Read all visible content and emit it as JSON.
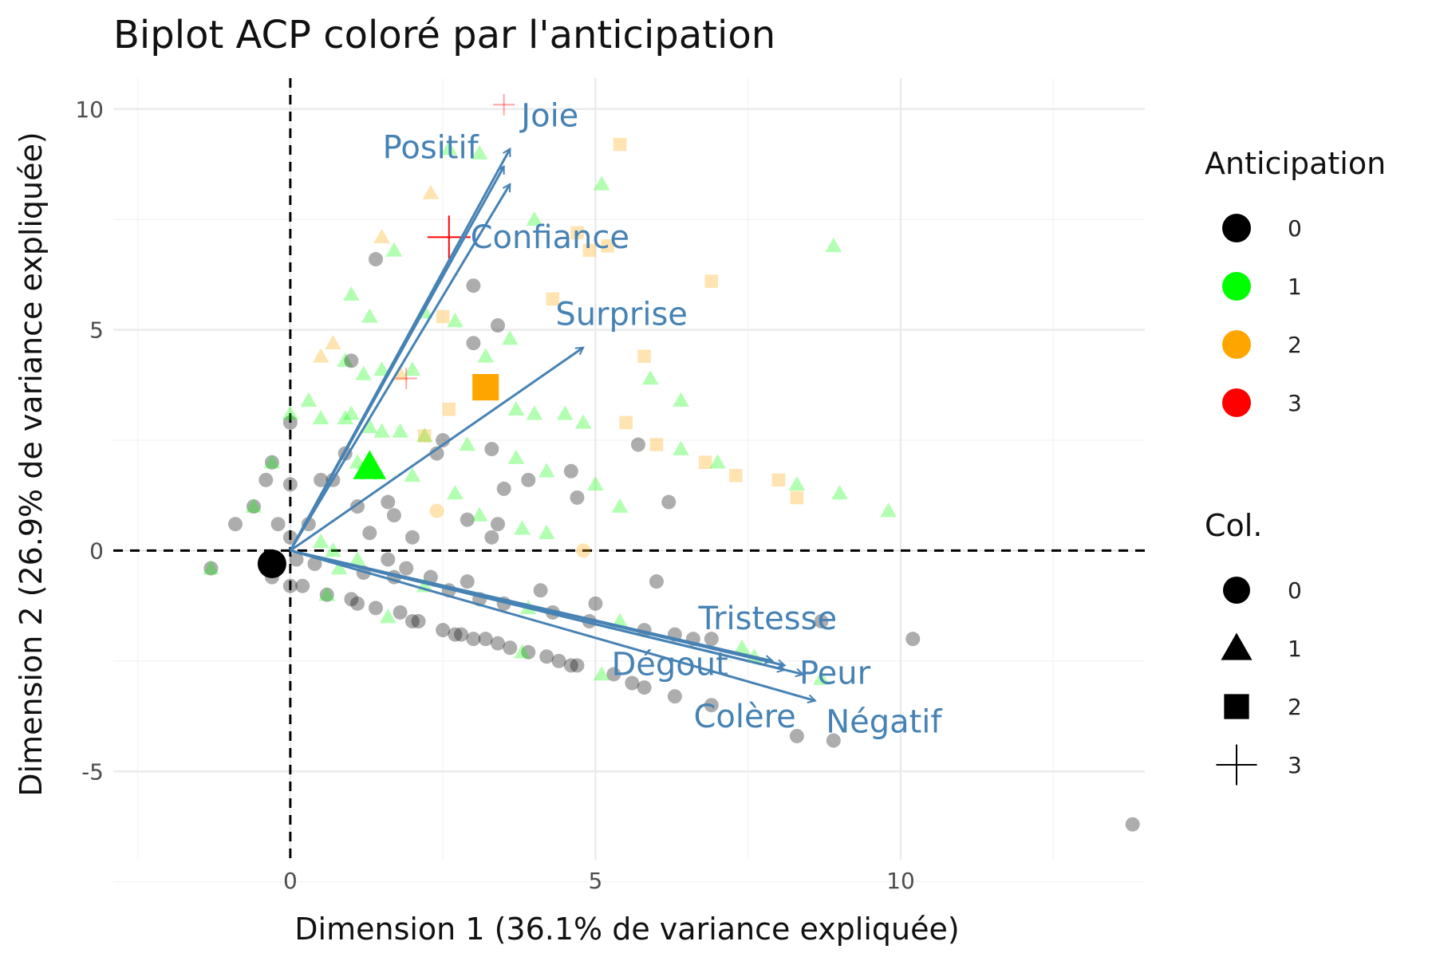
{
  "chart_data": {
    "type": "scatter",
    "title": "Biplot ACP coloré par l'anticipation",
    "xlabel": "Dimension 1 (36.1% de variance expliquée)",
    "ylabel": "Dimension 2 (26.9% de variance expliquée)",
    "xlim": [
      -2.9,
      14.0
    ],
    "ylim": [
      -7.0,
      10.7
    ],
    "x_ticks": [
      0,
      5,
      10
    ],
    "y_ticks": [
      -5,
      0,
      5,
      10
    ],
    "grid": true,
    "reference_lines": {
      "x": 0,
      "y": 0,
      "style": "dashed"
    },
    "legend_position": "right",
    "legends": [
      {
        "title": "Anticipation",
        "kind": "color",
        "items": [
          {
            "label": "0",
            "color": "#000000"
          },
          {
            "label": "1",
            "color": "#00FF00"
          },
          {
            "label": "2",
            "color": "#FFA500"
          },
          {
            "label": "3",
            "color": "#FF0000"
          }
        ]
      },
      {
        "title": "Col.",
        "kind": "shape",
        "items": [
          {
            "label": "0",
            "shape": "circle"
          },
          {
            "label": "1",
            "shape": "triangle"
          },
          {
            "label": "2",
            "shape": "square"
          },
          {
            "label": "3",
            "shape": "plus"
          }
        ]
      }
    ],
    "centroids": [
      {
        "anticipation": "0",
        "x": -0.3,
        "y": -0.3
      },
      {
        "anticipation": "1",
        "x": 1.3,
        "y": 1.9
      },
      {
        "anticipation": "2",
        "x": 3.2,
        "y": 3.7
      },
      {
        "anticipation": "3",
        "x": 2.6,
        "y": 7.1
      }
    ],
    "loadings": [
      {
        "name": "Joie",
        "x": 3.6,
        "y": 9.1
      },
      {
        "name": "Positif",
        "x": 3.5,
        "y": 8.7
      },
      {
        "name": "Confiance",
        "x": 3.6,
        "y": 8.3
      },
      {
        "name": "Surprise",
        "x": 4.8,
        "y": 4.6
      },
      {
        "name": "Tristesse",
        "x": 7.9,
        "y": -2.5
      },
      {
        "name": "Dégout",
        "x": 8.1,
        "y": -2.6
      },
      {
        "name": "Peur",
        "x": 8.4,
        "y": -2.8
      },
      {
        "name": "Colère",
        "x": 8.1,
        "y": -2.7
      },
      {
        "name": "Négatif",
        "x": 8.6,
        "y": -3.4
      }
    ],
    "points": [
      {
        "x": -1.3,
        "y": -0.4,
        "a": 0,
        "s": 0
      },
      {
        "x": -1.3,
        "y": -0.4,
        "a": 1,
        "s": 1
      },
      {
        "x": -0.9,
        "y": 0.6,
        "a": 0,
        "s": 0
      },
      {
        "x": -0.6,
        "y": 1.0,
        "a": 0,
        "s": 0
      },
      {
        "x": -0.6,
        "y": 1.0,
        "a": 1,
        "s": 1
      },
      {
        "x": -0.4,
        "y": 1.6,
        "a": 0,
        "s": 0
      },
      {
        "x": -0.3,
        "y": 2.0,
        "a": 0,
        "s": 0
      },
      {
        "x": -0.3,
        "y": 2.0,
        "a": 1,
        "s": 1
      },
      {
        "x": -0.3,
        "y": -0.6,
        "a": 0,
        "s": 0
      },
      {
        "x": -0.2,
        "y": 0.6,
        "a": 0,
        "s": 0
      },
      {
        "x": 0.0,
        "y": 1.5,
        "a": 0,
        "s": 0
      },
      {
        "x": 0.0,
        "y": 2.9,
        "a": 0,
        "s": 0
      },
      {
        "x": 0.0,
        "y": 3.1,
        "a": 1,
        "s": 1
      },
      {
        "x": 0.0,
        "y": 0.3,
        "a": 0,
        "s": 0
      },
      {
        "x": 0.0,
        "y": -0.8,
        "a": 0,
        "s": 0
      },
      {
        "x": 0.3,
        "y": 3.4,
        "a": 1,
        "s": 1
      },
      {
        "x": 0.3,
        "y": 0.6,
        "a": 0,
        "s": 0
      },
      {
        "x": 0.5,
        "y": 1.6,
        "a": 0,
        "s": 0
      },
      {
        "x": 0.5,
        "y": 3.0,
        "a": 1,
        "s": 1
      },
      {
        "x": 0.5,
        "y": 4.4,
        "a": 2,
        "s": 1
      },
      {
        "x": 0.5,
        "y": 0.2,
        "a": 1,
        "s": 1
      },
      {
        "x": 0.6,
        "y": -1.0,
        "a": 0,
        "s": 0
      },
      {
        "x": 0.7,
        "y": 4.7,
        "a": 2,
        "s": 1
      },
      {
        "x": 0.7,
        "y": 1.6,
        "a": 0,
        "s": 0
      },
      {
        "x": 0.7,
        "y": 0.0,
        "a": 1,
        "s": 1
      },
      {
        "x": 0.9,
        "y": 2.2,
        "a": 0,
        "s": 0
      },
      {
        "x": 0.9,
        "y": 4.3,
        "a": 1,
        "s": 1
      },
      {
        "x": 1.0,
        "y": -1.1,
        "a": 0,
        "s": 0
      },
      {
        "x": 1.0,
        "y": 4.3,
        "a": 0,
        "s": 0
      },
      {
        "x": 1.0,
        "y": 3.1,
        "a": 1,
        "s": 1
      },
      {
        "x": 1.0,
        "y": 5.8,
        "a": 1,
        "s": 1
      },
      {
        "x": 1.1,
        "y": 1.0,
        "a": 0,
        "s": 0
      },
      {
        "x": 1.1,
        "y": -0.2,
        "a": 1,
        "s": 1
      },
      {
        "x": 1.2,
        "y": 4.0,
        "a": 1,
        "s": 1
      },
      {
        "x": 1.3,
        "y": 2.8,
        "a": 1,
        "s": 1
      },
      {
        "x": 1.3,
        "y": 5.3,
        "a": 1,
        "s": 1
      },
      {
        "x": 1.3,
        "y": 0.4,
        "a": 0,
        "s": 0
      },
      {
        "x": 1.4,
        "y": -1.3,
        "a": 0,
        "s": 0
      },
      {
        "x": 1.4,
        "y": 6.6,
        "a": 0,
        "s": 0
      },
      {
        "x": 1.5,
        "y": 7.1,
        "a": 2,
        "s": 1
      },
      {
        "x": 1.5,
        "y": 4.1,
        "a": 1,
        "s": 1
      },
      {
        "x": 1.5,
        "y": 2.7,
        "a": 1,
        "s": 1
      },
      {
        "x": 1.6,
        "y": 1.1,
        "a": 0,
        "s": 0
      },
      {
        "x": 1.6,
        "y": -0.2,
        "a": 0,
        "s": 0
      },
      {
        "x": 1.7,
        "y": 6.8,
        "a": 1,
        "s": 1
      },
      {
        "x": 1.7,
        "y": 0.8,
        "a": 0,
        "s": 0
      },
      {
        "x": 1.8,
        "y": -1.4,
        "a": 0,
        "s": 0
      },
      {
        "x": 1.8,
        "y": 4.0,
        "a": 2,
        "s": 1
      },
      {
        "x": 1.8,
        "y": 2.7,
        "a": 1,
        "s": 1
      },
      {
        "x": 1.9,
        "y": -0.4,
        "a": 0,
        "s": 0
      },
      {
        "x": 2.0,
        "y": 4.1,
        "a": 1,
        "s": 1
      },
      {
        "x": 2.0,
        "y": 1.7,
        "a": 1,
        "s": 1
      },
      {
        "x": 2.1,
        "y": -1.6,
        "a": 0,
        "s": 0
      },
      {
        "x": 2.2,
        "y": 2.6,
        "a": 1,
        "s": 1
      },
      {
        "x": 2.2,
        "y": 5.4,
        "a": 1,
        "s": 1
      },
      {
        "x": 2.3,
        "y": 8.1,
        "a": 2,
        "s": 1
      },
      {
        "x": 2.3,
        "y": -0.6,
        "a": 0,
        "s": 0
      },
      {
        "x": 2.4,
        "y": 0.9,
        "a": 2,
        "s": 0
      },
      {
        "x": 2.4,
        "y": 2.2,
        "a": 0,
        "s": 0
      },
      {
        "x": 2.5,
        "y": 5.3,
        "a": 2,
        "s": 2
      },
      {
        "x": 2.5,
        "y": -1.8,
        "a": 0,
        "s": 0
      },
      {
        "x": 2.6,
        "y": 3.2,
        "a": 2,
        "s": 2
      },
      {
        "x": 2.6,
        "y": 9.1,
        "a": 1,
        "s": 1
      },
      {
        "x": 2.7,
        "y": 1.3,
        "a": 1,
        "s": 1
      },
      {
        "x": 2.7,
        "y": 5.2,
        "a": 1,
        "s": 1
      },
      {
        "x": 2.8,
        "y": -1.9,
        "a": 0,
        "s": 0
      },
      {
        "x": 2.9,
        "y": 0.7,
        "a": 0,
        "s": 0
      },
      {
        "x": 2.9,
        "y": 2.4,
        "a": 1,
        "s": 1
      },
      {
        "x": 2.9,
        "y": -0.7,
        "a": 0,
        "s": 0
      },
      {
        "x": 3.0,
        "y": 4.7,
        "a": 0,
        "s": 0
      },
      {
        "x": 3.0,
        "y": 6.0,
        "a": 0,
        "s": 0
      },
      {
        "x": 3.1,
        "y": 9.0,
        "a": 1,
        "s": 1
      },
      {
        "x": 3.1,
        "y": 0.8,
        "a": 1,
        "s": 1
      },
      {
        "x": 3.2,
        "y": -2.0,
        "a": 0,
        "s": 0
      },
      {
        "x": 3.2,
        "y": 4.4,
        "a": 1,
        "s": 1
      },
      {
        "x": 3.3,
        "y": 2.3,
        "a": 0,
        "s": 0
      },
      {
        "x": 3.3,
        "y": 0.3,
        "a": 0,
        "s": 0
      },
      {
        "x": 3.4,
        "y": 5.1,
        "a": 0,
        "s": 0
      },
      {
        "x": 3.5,
        "y": 10.1,
        "a": 3,
        "s": 3
      },
      {
        "x": 3.5,
        "y": 1.4,
        "a": 0,
        "s": 0
      },
      {
        "x": 3.6,
        "y": -2.2,
        "a": 0,
        "s": 0
      },
      {
        "x": 3.6,
        "y": 4.8,
        "a": 1,
        "s": 1
      },
      {
        "x": 3.7,
        "y": 3.2,
        "a": 1,
        "s": 1
      },
      {
        "x": 3.7,
        "y": 2.1,
        "a": 1,
        "s": 1
      },
      {
        "x": 3.8,
        "y": 0.5,
        "a": 1,
        "s": 1
      },
      {
        "x": 3.9,
        "y": -2.3,
        "a": 0,
        "s": 0
      },
      {
        "x": 4.0,
        "y": 7.5,
        "a": 1,
        "s": 1
      },
      {
        "x": 4.0,
        "y": 3.1,
        "a": 1,
        "s": 1
      },
      {
        "x": 4.1,
        "y": -0.9,
        "a": 0,
        "s": 0
      },
      {
        "x": 4.2,
        "y": 1.8,
        "a": 1,
        "s": 1
      },
      {
        "x": 4.2,
        "y": 0.4,
        "a": 1,
        "s": 1
      },
      {
        "x": 4.3,
        "y": 5.7,
        "a": 2,
        "s": 2
      },
      {
        "x": 4.4,
        "y": -2.5,
        "a": 0,
        "s": 0
      },
      {
        "x": 4.5,
        "y": 3.1,
        "a": 1,
        "s": 1
      },
      {
        "x": 4.6,
        "y": 1.8,
        "a": 0,
        "s": 0
      },
      {
        "x": 4.7,
        "y": 7.2,
        "a": 2,
        "s": 2
      },
      {
        "x": 4.7,
        "y": -2.6,
        "a": 0,
        "s": 0
      },
      {
        "x": 4.8,
        "y": 2.9,
        "a": 1,
        "s": 1
      },
      {
        "x": 4.8,
        "y": 0.0,
        "a": 2,
        "s": 0
      },
      {
        "x": 4.9,
        "y": 6.8,
        "a": 2,
        "s": 2
      },
      {
        "x": 5.0,
        "y": 1.5,
        "a": 1,
        "s": 1
      },
      {
        "x": 5.0,
        "y": -1.2,
        "a": 0,
        "s": 0
      },
      {
        "x": 5.1,
        "y": 8.3,
        "a": 1,
        "s": 1
      },
      {
        "x": 5.2,
        "y": 6.9,
        "a": 2,
        "s": 2
      },
      {
        "x": 5.3,
        "y": -2.8,
        "a": 0,
        "s": 0
      },
      {
        "x": 5.4,
        "y": 1.0,
        "a": 1,
        "s": 1
      },
      {
        "x": 5.4,
        "y": 9.2,
        "a": 2,
        "s": 2
      },
      {
        "x": 5.6,
        "y": -3.0,
        "a": 0,
        "s": 0
      },
      {
        "x": 5.7,
        "y": 2.4,
        "a": 0,
        "s": 0
      },
      {
        "x": 5.8,
        "y": 4.4,
        "a": 2,
        "s": 2
      },
      {
        "x": 5.9,
        "y": 3.9,
        "a": 1,
        "s": 1
      },
      {
        "x": 6.0,
        "y": 2.4,
        "a": 2,
        "s": 2
      },
      {
        "x": 6.0,
        "y": -0.7,
        "a": 0,
        "s": 0
      },
      {
        "x": 6.2,
        "y": 1.1,
        "a": 0,
        "s": 0
      },
      {
        "x": 6.4,
        "y": 3.4,
        "a": 1,
        "s": 1
      },
      {
        "x": 6.4,
        "y": 2.3,
        "a": 1,
        "s": 1
      },
      {
        "x": 6.6,
        "y": -2.0,
        "a": 0,
        "s": 0
      },
      {
        "x": 6.8,
        "y": 2.0,
        "a": 2,
        "s": 2
      },
      {
        "x": 6.9,
        "y": 6.1,
        "a": 2,
        "s": 2
      },
      {
        "x": 7.0,
        "y": 2.0,
        "a": 1,
        "s": 1
      },
      {
        "x": 7.3,
        "y": 1.7,
        "a": 2,
        "s": 2
      },
      {
        "x": 7.6,
        "y": -2.4,
        "a": 1,
        "s": 1
      },
      {
        "x": 8.0,
        "y": 1.6,
        "a": 2,
        "s": 2
      },
      {
        "x": 8.3,
        "y": 1.5,
        "a": 1,
        "s": 1
      },
      {
        "x": 8.3,
        "y": 1.2,
        "a": 2,
        "s": 2
      },
      {
        "x": 8.3,
        "y": -4.2,
        "a": 0,
        "s": 0
      },
      {
        "x": 8.7,
        "y": -1.6,
        "a": 0,
        "s": 0
      },
      {
        "x": 8.7,
        "y": -2.9,
        "a": 1,
        "s": 1
      },
      {
        "x": 8.9,
        "y": -4.3,
        "a": 0,
        "s": 0
      },
      {
        "x": 8.9,
        "y": 6.9,
        "a": 1,
        "s": 1
      },
      {
        "x": 9.0,
        "y": 1.3,
        "a": 1,
        "s": 1
      },
      {
        "x": 9.8,
        "y": 0.9,
        "a": 1,
        "s": 1
      },
      {
        "x": 10.2,
        "y": -2.0,
        "a": 0,
        "s": 0
      },
      {
        "x": 13.8,
        "y": -6.2,
        "a": 0,
        "s": 0
      },
      {
        "x": 0.1,
        "y": -0.2,
        "a": 0,
        "s": 0
      },
      {
        "x": 0.4,
        "y": -0.3,
        "a": 0,
        "s": 0
      },
      {
        "x": 0.8,
        "y": -0.4,
        "a": 1,
        "s": 1
      },
      {
        "x": 1.2,
        "y": -0.5,
        "a": 0,
        "s": 0
      },
      {
        "x": 1.7,
        "y": -0.6,
        "a": 0,
        "s": 0
      },
      {
        "x": 2.2,
        "y": -0.8,
        "a": 1,
        "s": 1
      },
      {
        "x": 2.6,
        "y": -0.9,
        "a": 0,
        "s": 0
      },
      {
        "x": 3.1,
        "y": -1.1,
        "a": 0,
        "s": 0
      },
      {
        "x": 3.5,
        "y": -1.2,
        "a": 0,
        "s": 0
      },
      {
        "x": 3.9,
        "y": -1.3,
        "a": 1,
        "s": 1
      },
      {
        "x": 4.3,
        "y": -1.4,
        "a": 0,
        "s": 0
      },
      {
        "x": 4.9,
        "y": -1.6,
        "a": 0,
        "s": 0
      },
      {
        "x": 5.4,
        "y": -1.6,
        "a": 1,
        "s": 1
      },
      {
        "x": 5.8,
        "y": -1.8,
        "a": 0,
        "s": 0
      },
      {
        "x": 6.3,
        "y": -1.9,
        "a": 0,
        "s": 0
      },
      {
        "x": 6.9,
        "y": -2.0,
        "a": 0,
        "s": 0
      },
      {
        "x": 7.4,
        "y": -2.2,
        "a": 1,
        "s": 1
      },
      {
        "x": 0.2,
        "y": -0.8,
        "a": 0,
        "s": 0
      },
      {
        "x": 0.6,
        "y": -1.0,
        "a": 1,
        "s": 1
      },
      {
        "x": 1.1,
        "y": -1.2,
        "a": 0,
        "s": 0
      },
      {
        "x": 1.6,
        "y": -1.5,
        "a": 1,
        "s": 1
      },
      {
        "x": 2.0,
        "y": -1.6,
        "a": 0,
        "s": 0
      },
      {
        "x": 2.7,
        "y": -1.9,
        "a": 0,
        "s": 0
      },
      {
        "x": 3.0,
        "y": -2.0,
        "a": 0,
        "s": 0
      },
      {
        "x": 3.4,
        "y": -2.1,
        "a": 0,
        "s": 0
      },
      {
        "x": 3.8,
        "y": -2.3,
        "a": 1,
        "s": 1
      },
      {
        "x": 4.2,
        "y": -2.4,
        "a": 0,
        "s": 0
      },
      {
        "x": 4.6,
        "y": -2.6,
        "a": 0,
        "s": 0
      },
      {
        "x": 5.1,
        "y": -2.8,
        "a": 1,
        "s": 1
      },
      {
        "x": 5.8,
        "y": -3.1,
        "a": 0,
        "s": 0
      },
      {
        "x": 6.3,
        "y": -3.3,
        "a": 0,
        "s": 0
      },
      {
        "x": 6.9,
        "y": -3.5,
        "a": 0,
        "s": 0
      },
      {
        "x": 2.0,
        "y": 0.3,
        "a": 0,
        "s": 0
      },
      {
        "x": 3.4,
        "y": 0.6,
        "a": 0,
        "s": 0
      },
      {
        "x": 2.5,
        "y": 2.5,
        "a": 0,
        "s": 0
      },
      {
        "x": 2.2,
        "y": 2.6,
        "a": 2,
        "s": 2
      },
      {
        "x": 1.9,
        "y": 3.9,
        "a": 3,
        "s": 3
      },
      {
        "x": 3.9,
        "y": 1.6,
        "a": 0,
        "s": 0
      },
      {
        "x": 5.5,
        "y": 2.9,
        "a": 2,
        "s": 2
      },
      {
        "x": 4.7,
        "y": 1.2,
        "a": 0,
        "s": 0
      },
      {
        "x": 1.1,
        "y": 2.0,
        "a": 1,
        "s": 1
      },
      {
        "x": 0.9,
        "y": 3.0,
        "a": 1,
        "s": 1
      }
    ]
  }
}
